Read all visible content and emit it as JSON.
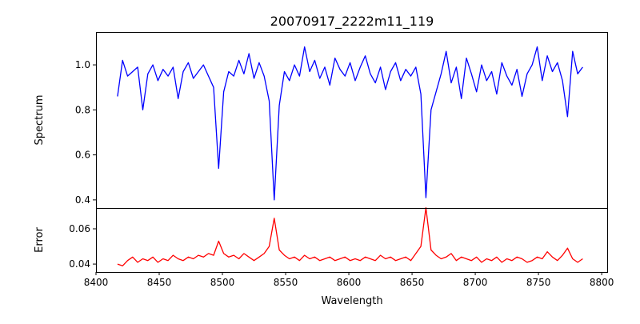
{
  "chart_data": [
    {
      "type": "line",
      "title": "20070917_2222m11_119",
      "xlabel": "",
      "ylabel": "Spectrum",
      "xlim": [
        8400,
        8805
      ],
      "ylim": [
        0.364,
        1.146
      ],
      "xticks": [
        8400,
        8450,
        8500,
        8550,
        8600,
        8650,
        8700,
        8750,
        8800
      ],
      "yticks": [
        0.4,
        0.6,
        0.8,
        1.0
      ],
      "ytick_labels": [
        "0.4",
        "0.6",
        "0.8",
        "1.0"
      ],
      "color": "#0000ff",
      "x_start": 8417,
      "x_step": 4,
      "values": [
        0.86,
        1.02,
        0.95,
        0.97,
        0.99,
        0.8,
        0.96,
        1.0,
        0.93,
        0.98,
        0.95,
        0.99,
        0.85,
        0.97,
        1.01,
        0.94,
        0.97,
        1.0,
        0.95,
        0.9,
        0.54,
        0.88,
        0.97,
        0.95,
        1.02,
        0.96,
        1.05,
        0.94,
        1.01,
        0.95,
        0.84,
        0.4,
        0.82,
        0.97,
        0.93,
        1.0,
        0.95,
        1.08,
        0.97,
        1.02,
        0.94,
        0.99,
        0.91,
        1.03,
        0.98,
        0.95,
        1.01,
        0.93,
        0.99,
        1.04,
        0.96,
        0.92,
        0.99,
        0.89,
        0.97,
        1.01,
        0.93,
        0.98,
        0.95,
        0.99,
        0.87,
        0.41,
        0.8,
        0.88,
        0.96,
        1.06,
        0.92,
        0.99,
        0.85,
        1.03,
        0.96,
        0.88,
        1.0,
        0.93,
        0.97,
        0.87,
        1.01,
        0.95,
        0.91,
        0.98,
        0.86,
        0.96,
        1.0,
        1.08,
        0.93,
        1.04,
        0.97,
        1.01,
        0.93,
        0.77,
        1.06,
        0.96,
        0.99
      ]
    },
    {
      "type": "line",
      "xlabel": "Wavelength",
      "ylabel": "Error",
      "xlim": [
        8400,
        8805
      ],
      "ylim": [
        0.0355,
        0.0718
      ],
      "xticks": [
        8400,
        8450,
        8500,
        8550,
        8600,
        8650,
        8700,
        8750,
        8800
      ],
      "xtick_labels": [
        "8400",
        "8450",
        "8500",
        "8550",
        "8600",
        "8650",
        "8700",
        "8750",
        "8800"
      ],
      "yticks": [
        0.04,
        0.06
      ],
      "ytick_labels": [
        "0.04",
        "0.06"
      ],
      "color": "#ff0000",
      "x_start": 8417,
      "x_step": 4,
      "values": [
        0.04,
        0.039,
        0.042,
        0.044,
        0.041,
        0.043,
        0.042,
        0.044,
        0.041,
        0.043,
        0.042,
        0.045,
        0.043,
        0.042,
        0.044,
        0.043,
        0.045,
        0.044,
        0.046,
        0.045,
        0.053,
        0.046,
        0.044,
        0.045,
        0.043,
        0.046,
        0.044,
        0.042,
        0.044,
        0.046,
        0.05,
        0.066,
        0.048,
        0.045,
        0.043,
        0.044,
        0.042,
        0.045,
        0.043,
        0.044,
        0.042,
        0.043,
        0.044,
        0.042,
        0.043,
        0.044,
        0.042,
        0.043,
        0.042,
        0.044,
        0.043,
        0.042,
        0.045,
        0.043,
        0.044,
        0.042,
        0.043,
        0.044,
        0.042,
        0.046,
        0.05,
        0.072,
        0.048,
        0.045,
        0.043,
        0.044,
        0.046,
        0.042,
        0.044,
        0.043,
        0.042,
        0.044,
        0.041,
        0.043,
        0.042,
        0.044,
        0.041,
        0.043,
        0.042,
        0.044,
        0.043,
        0.041,
        0.042,
        0.044,
        0.043,
        0.047,
        0.044,
        0.042,
        0.045,
        0.049,
        0.043,
        0.041,
        0.043
      ]
    }
  ]
}
